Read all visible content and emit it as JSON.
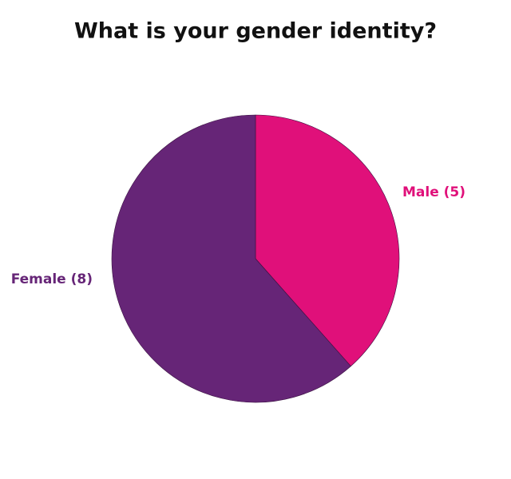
{
  "chart_data": {
    "type": "pie",
    "title": "What is your gender identity?",
    "values": [
      5,
      8
    ],
    "value_labels": [
      "Male (5)",
      "Female (8)"
    ],
    "colors": [
      "#e0107a",
      "#662577"
    ]
  }
}
